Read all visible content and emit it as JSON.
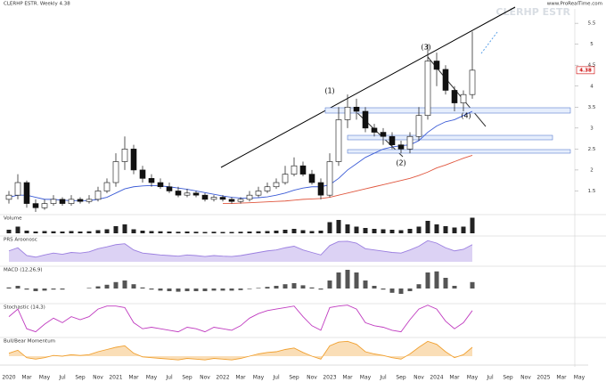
{
  "chart_data": [
    {
      "type": "candlestick",
      "title": "CLERHP ESTR. Weekly 4.38",
      "watermark": "CLERHP ESTR",
      "source": "www.ProRealTime.com",
      "categories": [
        "2020",
        null,
        "Mar",
        null,
        "May",
        null,
        "Jul",
        null,
        "Sep",
        null,
        "Nov",
        null,
        "2021",
        null,
        "Mar",
        null,
        "May",
        null,
        "Jul",
        null,
        "Sep",
        null,
        "Nov",
        null,
        "2022",
        null,
        "Mar",
        null,
        "May",
        null,
        "Jul",
        null,
        "Sep",
        null,
        "Nov",
        null,
        "2023",
        null,
        "Mar",
        null,
        "May",
        null,
        "Jul",
        null,
        "Sep",
        null,
        "Nov",
        null,
        "2024",
        null,
        "Mar",
        null,
        "May",
        null,
        "Jul",
        null,
        "Sep",
        null,
        "Nov",
        null,
        "2025",
        null,
        "Mar",
        null,
        "May",
        null
      ],
      "open": [
        1.3,
        1.4,
        1.7,
        1.2,
        1.1,
        1.2,
        1.3,
        1.2,
        1.3,
        1.25,
        1.3,
        1.5,
        1.7,
        2.2,
        2.5,
        2.0,
        1.8,
        1.7,
        1.6,
        1.5,
        1.4,
        1.45,
        1.4,
        1.3,
        1.35,
        1.3,
        1.25,
        1.3,
        1.4,
        1.5,
        1.6,
        1.7,
        1.9,
        2.1,
        1.9,
        1.7,
        1.4,
        2.2,
        3.2,
        3.5,
        3.4,
        3.0,
        2.9,
        2.8,
        2.6,
        2.5,
        2.8,
        3.3,
        4.6,
        4.4,
        3.9,
        3.6,
        3.8,
        null,
        null,
        null,
        null,
        null,
        null,
        null,
        null,
        null,
        null,
        null,
        null,
        null
      ],
      "high": [
        1.5,
        1.9,
        1.75,
        1.3,
        1.3,
        1.4,
        1.35,
        1.4,
        1.35,
        1.4,
        1.6,
        1.8,
        2.4,
        2.8,
        2.6,
        2.1,
        1.9,
        1.8,
        1.7,
        1.6,
        1.55,
        1.5,
        1.45,
        1.4,
        1.4,
        1.35,
        1.35,
        1.5,
        1.6,
        1.7,
        1.8,
        2.1,
        2.3,
        2.2,
        2.0,
        1.8,
        2.4,
        3.5,
        3.8,
        3.7,
        3.5,
        3.1,
        3.0,
        2.9,
        2.7,
        2.9,
        3.5,
        5.0,
        4.8,
        4.5,
        4.0,
        3.9,
        5.3,
        null,
        null,
        null,
        null,
        null,
        null,
        null,
        null,
        null,
        null,
        null,
        null,
        null
      ],
      "low": [
        1.2,
        1.3,
        1.1,
        1.0,
        1.05,
        1.15,
        1.15,
        1.15,
        1.2,
        1.2,
        1.25,
        1.45,
        1.6,
        2.0,
        1.9,
        1.7,
        1.6,
        1.55,
        1.45,
        1.35,
        1.35,
        1.35,
        1.25,
        1.25,
        1.25,
        1.2,
        1.2,
        1.25,
        1.35,
        1.45,
        1.55,
        1.65,
        1.85,
        1.85,
        1.65,
        1.3,
        1.35,
        2.1,
        3.0,
        3.2,
        2.9,
        2.8,
        2.6,
        2.5,
        2.4,
        2.4,
        2.7,
        3.2,
        4.0,
        3.8,
        3.4,
        3.4,
        3.7,
        null,
        null,
        null,
        null,
        null,
        null,
        null,
        null,
        null,
        null,
        null,
        null,
        null
      ],
      "close": [
        1.4,
        1.7,
        1.2,
        1.1,
        1.2,
        1.3,
        1.2,
        1.3,
        1.25,
        1.3,
        1.5,
        1.7,
        2.2,
        2.5,
        2.0,
        1.8,
        1.7,
        1.6,
        1.5,
        1.4,
        1.45,
        1.4,
        1.3,
        1.35,
        1.3,
        1.25,
        1.3,
        1.4,
        1.5,
        1.6,
        1.7,
        1.9,
        2.1,
        1.9,
        1.7,
        1.4,
        2.2,
        3.2,
        3.5,
        3.4,
        3.0,
        2.9,
        2.8,
        2.6,
        2.5,
        2.8,
        3.3,
        4.6,
        4.4,
        3.9,
        3.6,
        3.8,
        4.38,
        null,
        null,
        null,
        null,
        null,
        null,
        null,
        null,
        null,
        null,
        null,
        null,
        null
      ],
      "lines": [
        {
          "color": "#3b5bd6",
          "values": [
            1.35,
            1.4,
            1.4,
            1.35,
            1.3,
            1.3,
            1.28,
            1.27,
            1.27,
            1.27,
            1.3,
            1.35,
            1.45,
            1.55,
            1.6,
            1.62,
            1.63,
            1.62,
            1.6,
            1.57,
            1.54,
            1.5,
            1.46,
            1.42,
            1.38,
            1.35,
            1.33,
            1.33,
            1.34,
            1.36,
            1.4,
            1.45,
            1.52,
            1.57,
            1.6,
            1.6,
            1.65,
            1.8,
            2.0,
            2.15,
            2.3,
            2.4,
            2.5,
            2.55,
            2.58,
            2.6,
            2.7,
            2.9,
            3.05,
            3.15,
            3.2,
            3.3,
            3.4,
            null,
            null,
            null,
            null,
            null,
            null,
            null,
            null,
            null,
            null,
            null,
            null,
            null
          ]
        },
        {
          "color": "#e0573f",
          "values": [
            null,
            null,
            null,
            null,
            null,
            null,
            null,
            null,
            null,
            null,
            null,
            null,
            null,
            null,
            null,
            null,
            null,
            null,
            null,
            null,
            null,
            null,
            null,
            null,
            1.2,
            1.2,
            1.21,
            1.22,
            1.23,
            1.24,
            1.25,
            1.26,
            1.28,
            1.3,
            1.31,
            1.32,
            1.35,
            1.4,
            1.45,
            1.5,
            1.55,
            1.6,
            1.65,
            1.7,
            1.75,
            1.8,
            1.87,
            1.95,
            2.05,
            2.12,
            2.2,
            2.28,
            2.35,
            null,
            null,
            null,
            null,
            null,
            null,
            null,
            null,
            null,
            null,
            null,
            null,
            null
          ]
        }
      ],
      "last_label": "4.38",
      "annotations": [
        "(1)",
        "(2)",
        "(3)",
        "(4)"
      ],
      "ylim": [
        1,
        5.8
      ],
      "yticks": [
        1.5,
        2,
        2.5,
        3,
        3.5,
        4,
        4.5,
        5,
        5.5
      ]
    },
    {
      "type": "bar",
      "title": "Volume",
      "color": "#222",
      "values": [
        80,
        150,
        60,
        40,
        50,
        45,
        40,
        50,
        40,
        45,
        70,
        90,
        160,
        200,
        90,
        60,
        50,
        45,
        40,
        35,
        40,
        35,
        30,
        35,
        30,
        30,
        35,
        40,
        45,
        50,
        60,
        80,
        100,
        70,
        50,
        60,
        250,
        300,
        200,
        150,
        120,
        100,
        90,
        80,
        70,
        100,
        150,
        280,
        200,
        160,
        130,
        150,
        350,
        null,
        null,
        null,
        null,
        null,
        null,
        null,
        null,
        null,
        null,
        null,
        null,
        null
      ],
      "ylim": [
        0,
        400
      ]
    },
    {
      "type": "area",
      "title": "PRS Aroonosc",
      "color": "#9b7fe0",
      "values": [
        55,
        65,
        40,
        35,
        42,
        48,
        44,
        50,
        48,
        52,
        62,
        68,
        75,
        78,
        58,
        48,
        45,
        42,
        40,
        38,
        42,
        40,
        37,
        40,
        38,
        37,
        40,
        45,
        50,
        55,
        58,
        65,
        70,
        58,
        50,
        42,
        72,
        85,
        86,
        80,
        62,
        58,
        54,
        50,
        48,
        58,
        70,
        88,
        80,
        65,
        55,
        60,
        75,
        null,
        null,
        null,
        null,
        null,
        null,
        null,
        null,
        null,
        null,
        null,
        null,
        null
      ],
      "ylim": [
        20,
        100
      ]
    },
    {
      "type": "bar",
      "title": "MACD (12,26,9)",
      "color": "#555",
      "values": [
        0.02,
        0.05,
        -0.02,
        -0.05,
        -0.04,
        -0.02,
        -0.02,
        0,
        0,
        0.01,
        0.04,
        0.07,
        0.12,
        0.15,
        0.08,
        0.02,
        -0.02,
        -0.04,
        -0.05,
        -0.06,
        -0.05,
        -0.05,
        -0.05,
        -0.04,
        -0.04,
        -0.04,
        -0.03,
        -0.01,
        0.01,
        0.03,
        0.05,
        0.08,
        0.1,
        0.06,
        0.02,
        -0.02,
        0.15,
        0.3,
        0.35,
        0.3,
        0.15,
        0.05,
        -0.02,
        -0.08,
        -0.1,
        -0.05,
        0.08,
        0.3,
        0.32,
        0.2,
        0.05,
        0.0,
        0.12,
        null,
        null,
        null,
        null,
        null,
        null,
        null,
        null,
        null,
        null,
        null,
        null,
        null
      ],
      "ylim": [
        -0.2,
        0.4
      ]
    },
    {
      "type": "line",
      "title": "Stochastic (14,3)",
      "color": "#c03cc0",
      "values": [
        60,
        85,
        20,
        10,
        35,
        55,
        40,
        60,
        50,
        60,
        85,
        95,
        95,
        90,
        40,
        20,
        25,
        20,
        15,
        10,
        25,
        20,
        10,
        25,
        20,
        15,
        30,
        55,
        70,
        80,
        85,
        90,
        95,
        60,
        30,
        15,
        90,
        95,
        98,
        85,
        40,
        30,
        25,
        15,
        10,
        50,
        85,
        98,
        85,
        45,
        20,
        40,
        80,
        null,
        null,
        null,
        null,
        null,
        null,
        null,
        null,
        null,
        null,
        null,
        null,
        null
      ],
      "ylim": [
        0,
        100
      ]
    },
    {
      "type": "area",
      "title": "Bull/Bear Momentum",
      "color": "#f0a030",
      "values": [
        20,
        40,
        -10,
        -20,
        -10,
        5,
        0,
        10,
        5,
        10,
        30,
        45,
        60,
        70,
        20,
        -5,
        -10,
        -15,
        -20,
        -25,
        -15,
        -20,
        -25,
        -15,
        -20,
        -25,
        -15,
        0,
        15,
        25,
        30,
        45,
        55,
        25,
        0,
        -20,
        70,
        95,
        100,
        80,
        30,
        15,
        5,
        -10,
        -20,
        15,
        60,
        100,
        80,
        30,
        -10,
        10,
        60,
        null,
        null,
        null,
        null,
        null,
        null,
        null,
        null,
        null,
        null,
        null,
        null,
        null
      ],
      "ylim": [
        -60,
        120
      ]
    }
  ]
}
